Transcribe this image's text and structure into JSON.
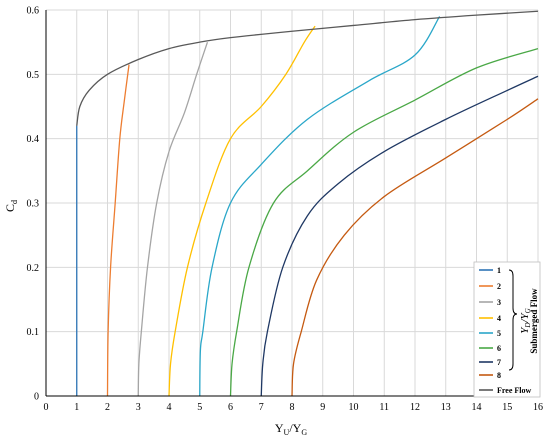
{
  "chart_data": {
    "type": "line",
    "xlabel": "Y",
    "xlabel_sub1": "U",
    "xlabel_mid": "/Y",
    "xlabel_sub2": "G",
    "ylabel": "C",
    "ylabel_sub": "d",
    "xlim": [
      0,
      16
    ],
    "ylim": [
      0,
      0.6
    ],
    "x_ticks": [
      "0",
      "1",
      "2",
      "3",
      "4",
      "5",
      "6",
      "7",
      "8",
      "9",
      "10",
      "11",
      "12",
      "13",
      "14",
      "15",
      "16"
    ],
    "y_ticks": [
      "0",
      "0.1",
      "0.2",
      "0.3",
      "0.4",
      "0.5",
      "0.6"
    ],
    "grid": true,
    "legend_position": "bottom-right",
    "legend_group_ratio": "YD/YG",
    "legend_group_label": "Submerged Flow",
    "series": [
      {
        "name": "1",
        "color": "#2e75b6",
        "x": [
          1.0,
          1.0,
          1.0
        ],
        "y": [
          0.0,
          0.2,
          0.42
        ]
      },
      {
        "name": "2",
        "color": "#ed7d31",
        "x": [
          2.0,
          2.02,
          2.1,
          2.25,
          2.4,
          2.55,
          2.7
        ],
        "y": [
          0.0,
          0.1,
          0.2,
          0.3,
          0.4,
          0.46,
          0.515
        ]
      },
      {
        "name": "3",
        "color": "#a5a5a5",
        "x": [
          3.0,
          3.02,
          3.1,
          3.3,
          3.6,
          4.0,
          4.5,
          4.9,
          5.25
        ],
        "y": [
          0.0,
          0.05,
          0.1,
          0.2,
          0.3,
          0.38,
          0.44,
          0.5,
          0.55
        ]
      },
      {
        "name": "4",
        "color": "#ffc000",
        "x": [
          4.0,
          4.05,
          4.2,
          4.6,
          5.2,
          6.0,
          7.0,
          7.8,
          8.4,
          8.75
        ],
        "y": [
          0.0,
          0.05,
          0.1,
          0.2,
          0.3,
          0.4,
          0.45,
          0.5,
          0.55,
          0.575
        ]
      },
      {
        "name": "5",
        "color": "#2aa7c9",
        "x": [
          5.0,
          5.02,
          5.1,
          5.4,
          6.0,
          7.0,
          8.5,
          10.5,
          12.0,
          12.8
        ],
        "y": [
          0.0,
          0.07,
          0.1,
          0.2,
          0.3,
          0.36,
          0.43,
          0.49,
          0.53,
          0.59
        ]
      },
      {
        "name": "6",
        "color": "#4aa846",
        "x": [
          6.0,
          6.05,
          6.2,
          6.6,
          7.4,
          8.5,
          10.0,
          12.0,
          14.0,
          16.0
        ],
        "y": [
          0.0,
          0.05,
          0.1,
          0.2,
          0.3,
          0.35,
          0.41,
          0.46,
          0.51,
          0.54
        ]
      },
      {
        "name": "7",
        "color": "#1f3864",
        "x": [
          7.0,
          7.05,
          7.2,
          7.7,
          8.5,
          9.5,
          11.0,
          13.0,
          15.0,
          16.0
        ],
        "y": [
          0.0,
          0.05,
          0.1,
          0.2,
          0.28,
          0.33,
          0.38,
          0.43,
          0.475,
          0.497
        ]
      },
      {
        "name": "8",
        "color": "#c55a11",
        "x": [
          8.0,
          8.05,
          8.3,
          8.8,
          9.7,
          11.0,
          13.0,
          15.0,
          16.0
        ],
        "y": [
          0.0,
          0.05,
          0.1,
          0.18,
          0.25,
          0.31,
          0.37,
          0.43,
          0.462
        ]
      },
      {
        "name": "Free Flow",
        "color": "#595959",
        "x": [
          1.0,
          1.1,
          1.4,
          2.0,
          3.0,
          4.0,
          5.0,
          6.0,
          8.0,
          10.0,
          12.0,
          14.0,
          16.0
        ],
        "y": [
          0.42,
          0.45,
          0.475,
          0.5,
          0.523,
          0.54,
          0.55,
          0.557,
          0.567,
          0.576,
          0.585,
          0.592,
          0.598
        ]
      }
    ]
  }
}
